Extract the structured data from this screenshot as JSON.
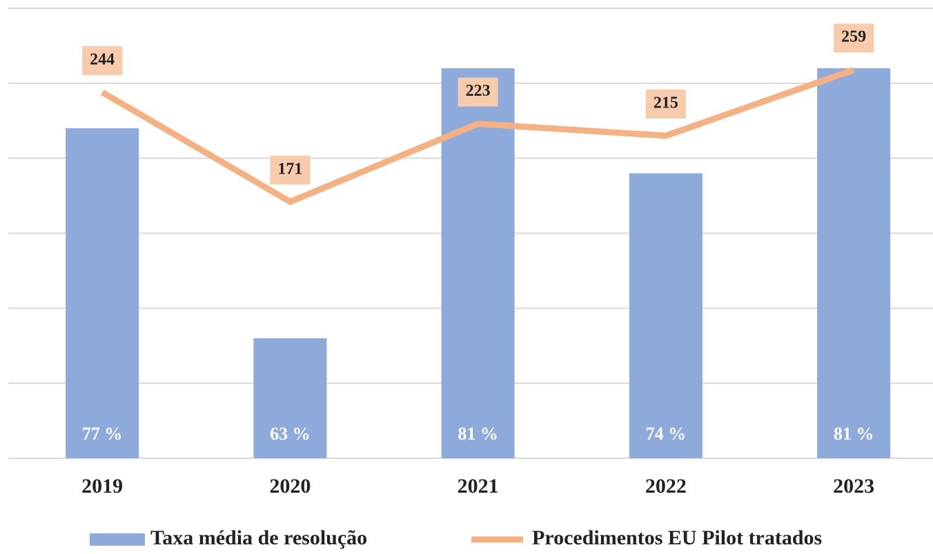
{
  "chart_data": {
    "type": "bar_line",
    "categories": [
      "2019",
      "2020",
      "2021",
      "2022",
      "2023"
    ],
    "series": [
      {
        "name": "Taxa média de resolução",
        "type": "bar",
        "color": "#8eaadb",
        "values": [
          77,
          63,
          81,
          74,
          81
        ],
        "value_labels": [
          "77 %",
          "63 %",
          "81 %",
          "74 %",
          "81 %"
        ]
      },
      {
        "name": "Procedimentos EU Pilot tratados",
        "type": "line",
        "axis": "y2",
        "color": "#f4b183",
        "label_color": "#f8cbad",
        "values": [
          244,
          171,
          223,
          215,
          259
        ]
      }
    ],
    "ylim": [
      55,
      85
    ],
    "yticks": [
      55,
      60,
      65,
      70,
      75,
      80,
      85
    ],
    "y2lim": [
      0,
      300
    ],
    "grid": true
  }
}
